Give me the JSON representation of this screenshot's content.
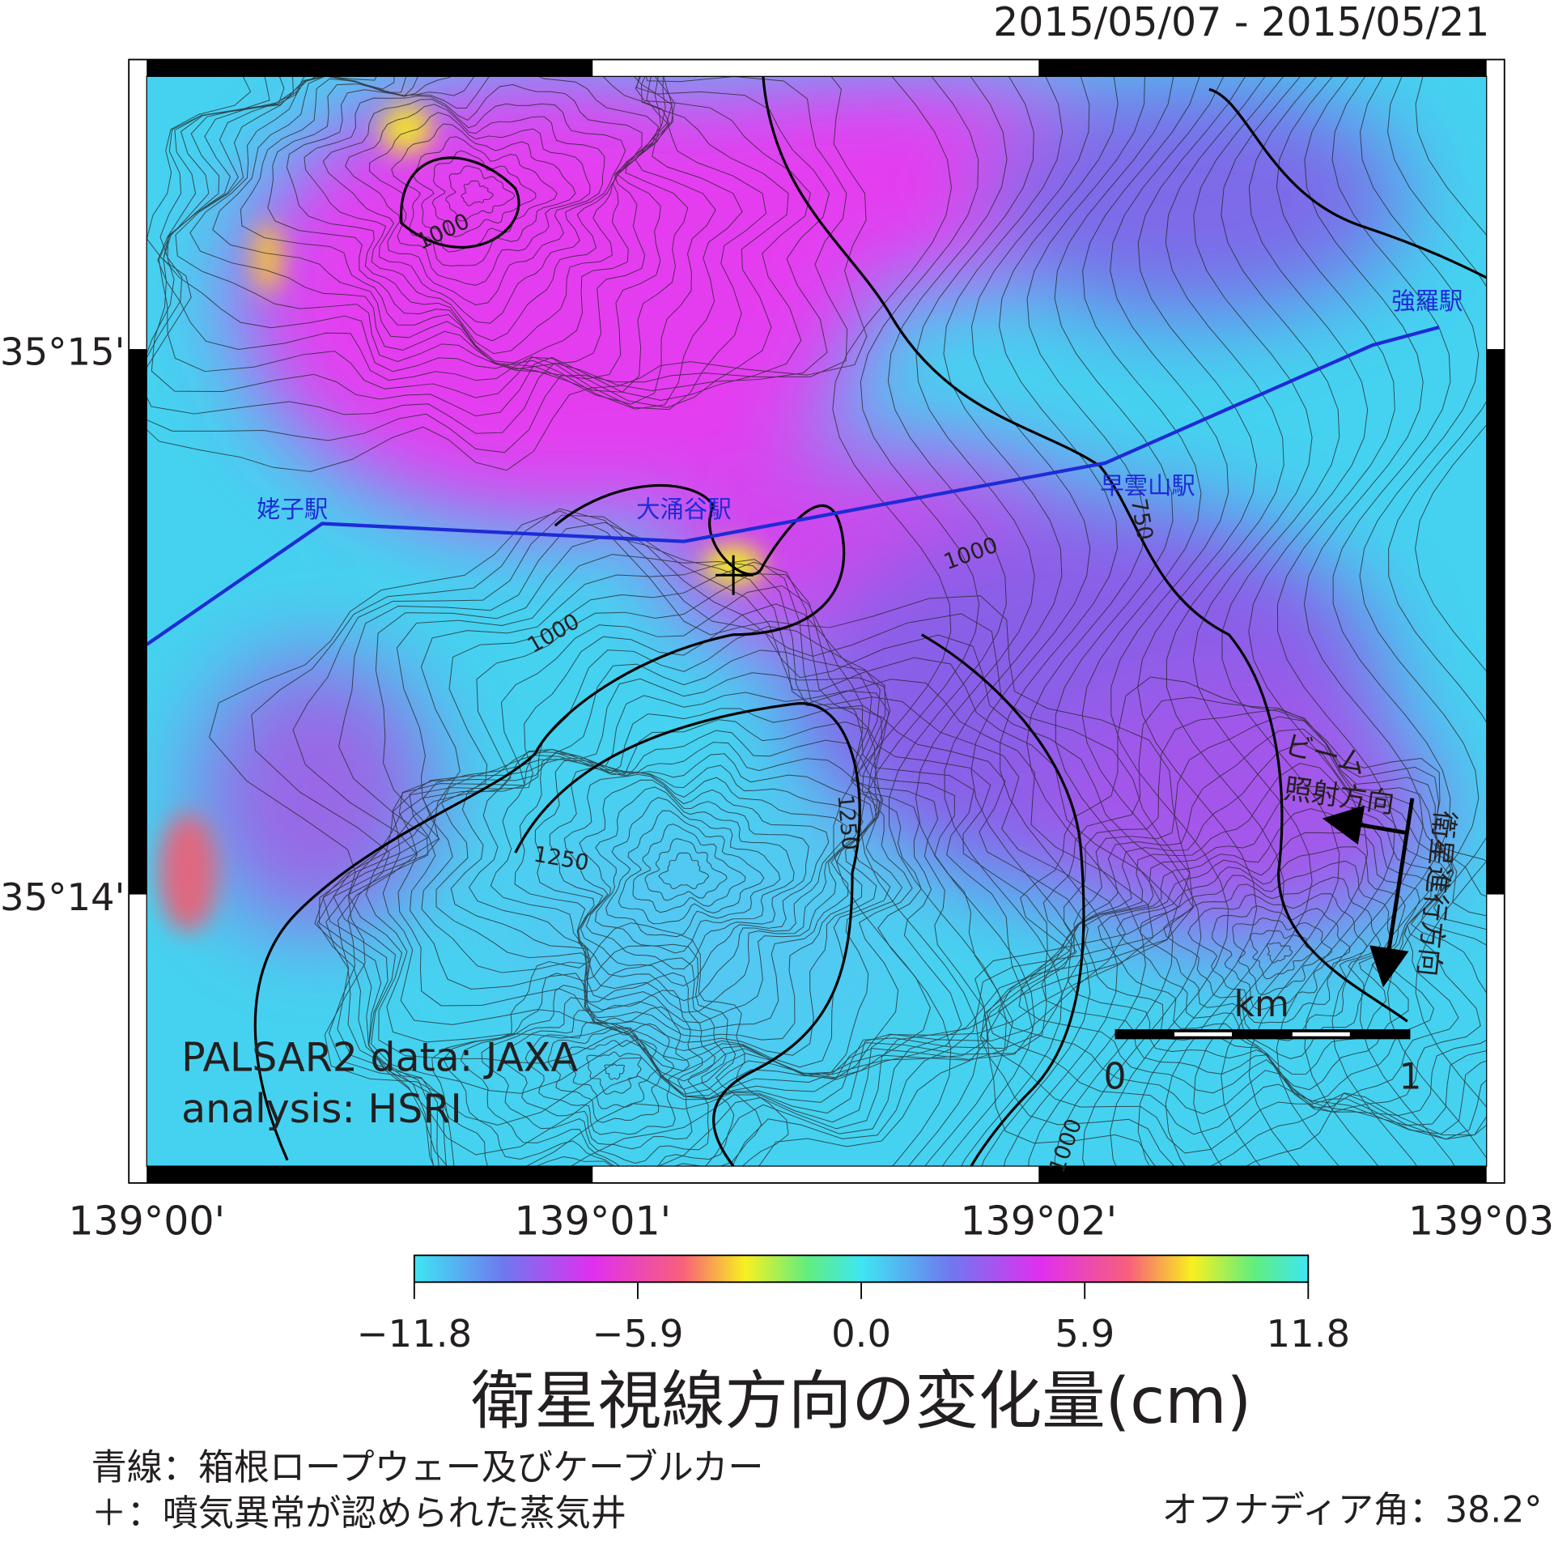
{
  "header": {
    "date_range": "2015/05/07 - 2015/05/21"
  },
  "map": {
    "lat_labels": [
      "35°15'",
      "35°14'"
    ],
    "lon_labels": [
      "139°00'",
      "139°01'",
      "139°02'",
      "139°03'"
    ],
    "stations": [
      "姥子駅",
      "大涌谷駅",
      "早雲山駅",
      "強羅駅"
    ],
    "contour_labels": [
      "1000",
      "1000",
      "1000",
      "750",
      "1250",
      "1250",
      "1000"
    ],
    "credit": [
      "PALSAR2 data: JAXA",
      "analysis: HSRI"
    ],
    "beam_label": [
      "ビーム",
      "照射方向"
    ],
    "flight_label": "衛星進行方向",
    "scale_bar": {
      "unit": "km",
      "labels": [
        "0",
        "1"
      ]
    }
  },
  "colorbar": {
    "range": [
      -11.8,
      11.8
    ],
    "ticks": [
      {
        "value": -11.8,
        "label": "−11.8"
      },
      {
        "value": -5.9,
        "label": "−5.9"
      },
      {
        "value": 0,
        "label": "0.0"
      },
      5.9,
      11.8
    ],
    "title": "衛星視線方向の変化量(cm)"
  },
  "notes": [
    "青線：箱根ロープウェー及びケーブルカー",
    "＋：噴気異常が認められた蒸気井"
  ],
  "off_nadir": "オフナディア角：38.2°"
}
